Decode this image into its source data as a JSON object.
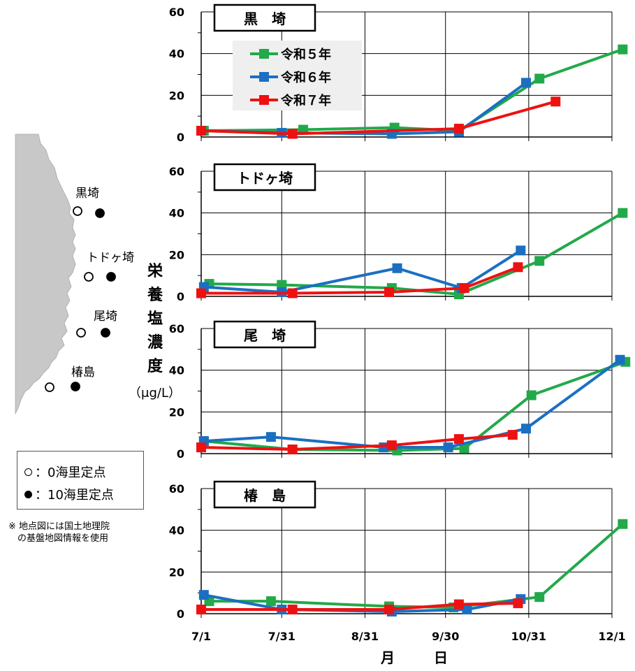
{
  "chart_data": {
    "type": "line",
    "ylabel": "栄養塩濃度",
    "yunit": "（μg/L）",
    "xlabel": "月　日",
    "x_ticks": [
      "7/1",
      "7/31",
      "8/31",
      "9/30",
      "10/31",
      "12/1"
    ],
    "ylim": [
      0,
      60
    ],
    "y_ticks": [
      0,
      20,
      40,
      60
    ],
    "legend": [
      "令和５年",
      "令和６年",
      "令和７年"
    ],
    "series_colors": {
      "令和５年": "#22a94a",
      "令和６年": "#1b6fc2",
      "令和７年": "#ee1111"
    },
    "panels": [
      {
        "title": "黒　埼",
        "series": [
          {
            "name": "令和５年",
            "x": [
              1,
              38,
              72,
              96,
              126,
              157
            ],
            "values": [
              3,
              3.5,
              4.5,
              3,
              28,
              42
            ]
          },
          {
            "name": "令和６年",
            "x": [
              0,
              30,
              71,
              96,
              121
            ],
            "values": [
              3,
              2,
              1.5,
              2.5,
              26
            ]
          },
          {
            "name": "令和７年",
            "x": [
              0,
              34,
              96,
              132
            ],
            "values": [
              3,
              1.5,
              4,
              17
            ]
          }
        ]
      },
      {
        "title": "トドヶ埼",
        "series": [
          {
            "name": "令和５年",
            "x": [
              3,
              30,
              71,
              96,
              126,
              157
            ],
            "values": [
              6,
              5.5,
              4,
              1,
              17,
              40
            ]
          },
          {
            "name": "令和６年",
            "x": [
              1,
              30,
              73,
              97,
              119
            ],
            "values": [
              4.5,
              2,
              13.5,
              4,
              22
            ]
          },
          {
            "name": "令和７年",
            "x": [
              0,
              34,
              70,
              98,
              118
            ],
            "values": [
              1.5,
              1.5,
              2,
              4,
              14
            ]
          }
        ]
      },
      {
        "title": "尾　埼",
        "series": [
          {
            "name": "令和５年",
            "x": [
              1,
              34,
              73,
              98,
              123,
              158
            ],
            "values": [
              6,
              2,
              1.5,
              2.5,
              28,
              44
            ]
          },
          {
            "name": "令和６年",
            "x": [
              1,
              26,
              68,
              92,
              121,
              156
            ],
            "values": [
              6,
              8,
              3,
              3,
              12,
              45
            ]
          },
          {
            "name": "令和７年",
            "x": [
              0,
              34,
              71,
              96,
              116
            ],
            "values": [
              3,
              2,
              4,
              7,
              9
            ]
          }
        ]
      },
      {
        "title": "椿　島",
        "series": [
          {
            "name": "令和５年",
            "x": [
              3,
              26,
              70,
              94,
              126,
              157
            ],
            "values": [
              6,
              6,
              3.5,
              3,
              8,
              43
            ]
          },
          {
            "name": "令和６年",
            "x": [
              1,
              30,
              71,
              99,
              119
            ],
            "values": [
              9,
              2,
              1,
              2,
              7
            ]
          },
          {
            "name": "令和７年",
            "x": [
              0,
              34,
              70,
              96,
              118
            ],
            "values": [
              2,
              2,
              2,
              4.5,
              5
            ]
          }
        ]
      }
    ]
  },
  "map": {
    "stations": [
      "黒埼",
      "トドヶ埼",
      "尾埼",
      "椿島"
    ],
    "legend": {
      "open": "：0海里定点",
      "filled": "：10海里定点"
    },
    "note": "※ 地点図には国土地理院\n　の基盤地図情報を使用"
  }
}
